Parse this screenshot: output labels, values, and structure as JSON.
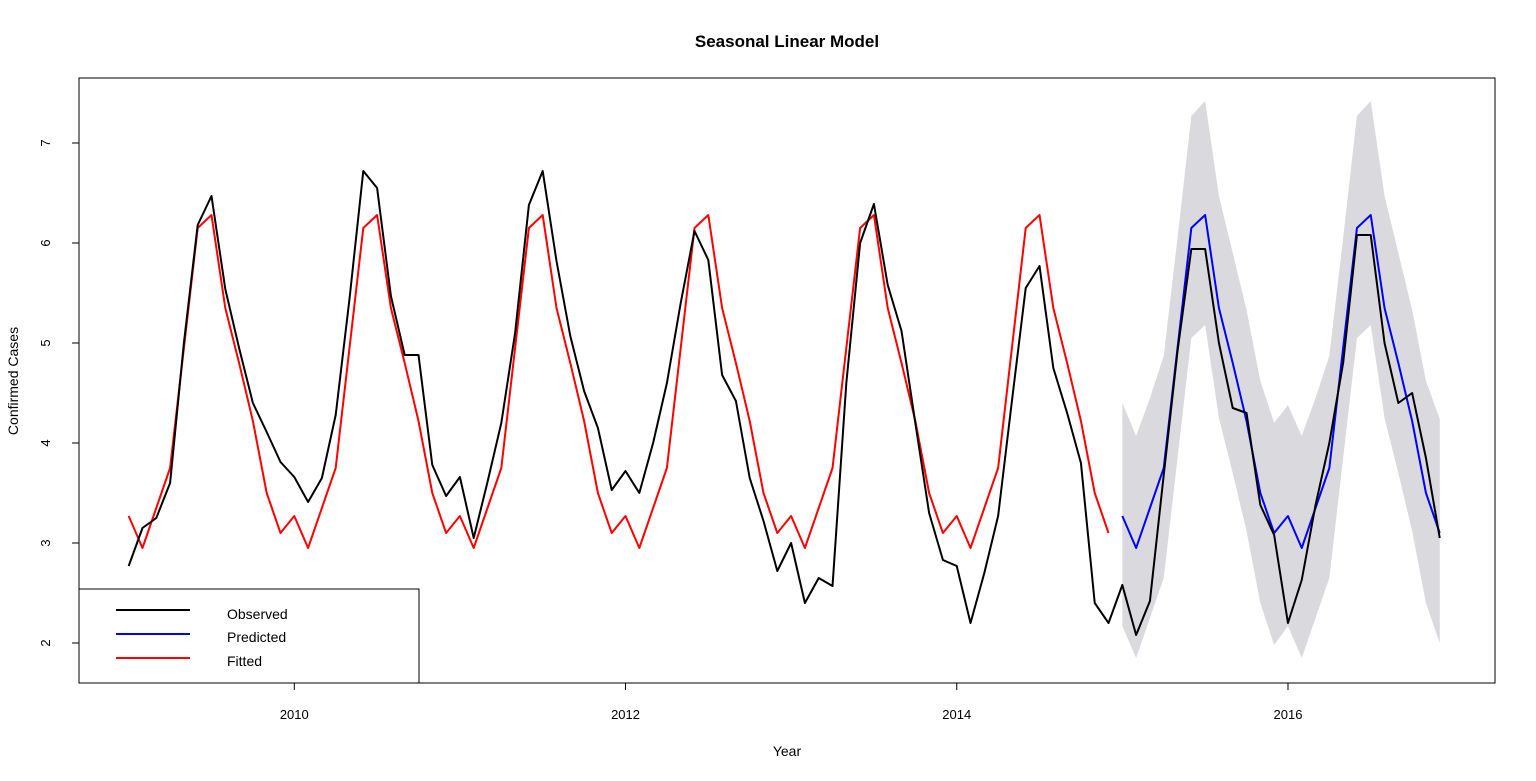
{
  "chart_data": {
    "type": "line",
    "title": "Seasonal Linear Model",
    "xlabel": "Year",
    "ylabel": "Confirmed Cases",
    "xlim": [
      2008.7,
      2017.25
    ],
    "ylim": [
      1.6,
      7.65
    ],
    "x_ticks": [
      2010,
      2012,
      2014,
      2016
    ],
    "x_tick_labels": [
      "2010",
      "2012",
      "2014",
      "2016"
    ],
    "y_ticks": [
      2,
      3,
      4,
      5,
      6,
      7
    ],
    "y_tick_labels": [
      "2",
      "3",
      "4",
      "5",
      "6",
      "7"
    ],
    "grid": false,
    "legend_position": "bottom-left",
    "colors": {
      "observed": "#000000",
      "predicted": "#0000ff",
      "fitted": "#ff0000",
      "interval": "#d9d9de"
    },
    "start": 2009.0,
    "step": 0.08333,
    "series": [
      {
        "name": "Observed",
        "color": "#000000",
        "values": [
          2.77,
          3.15,
          3.25,
          3.6,
          5.0,
          6.18,
          6.47,
          5.54,
          4.95,
          4.4,
          4.11,
          3.81,
          3.66,
          3.41,
          3.65,
          4.28,
          5.44,
          6.72,
          6.55,
          5.47,
          4.88,
          4.88,
          3.78,
          3.47,
          3.66,
          3.05,
          3.61,
          4.2,
          5.1,
          6.38,
          6.72,
          5.82,
          5.07,
          4.52,
          4.15,
          3.53,
          3.72,
          3.5,
          4.0,
          4.6,
          5.4,
          6.12,
          5.83,
          4.68,
          4.42,
          3.65,
          3.22,
          2.72,
          3.0,
          2.4,
          2.65,
          2.57,
          4.6,
          6.0,
          6.39,
          5.58,
          5.12,
          4.2,
          3.3,
          2.83,
          2.77,
          2.2,
          2.7,
          3.27,
          4.42,
          5.55,
          5.77,
          4.75,
          4.3,
          3.8,
          2.4,
          2.2,
          2.58,
          2.08,
          2.42,
          3.68,
          4.92,
          5.94,
          5.94,
          5.0,
          4.35,
          4.3,
          3.38,
          3.08,
          2.2,
          2.63,
          3.38,
          4.0,
          4.8,
          6.08,
          6.08,
          5.0,
          4.4,
          4.5,
          3.85,
          3.05
        ]
      },
      {
        "name": "Fitted",
        "color": "#ff0000",
        "values": [
          3.27,
          2.95,
          3.35,
          3.75,
          4.95,
          6.15,
          6.28,
          5.35,
          4.8,
          4.22,
          3.5,
          3.1,
          3.27,
          2.95,
          3.35,
          3.75,
          4.95,
          6.15,
          6.28,
          5.35,
          4.8,
          4.22,
          3.5,
          3.1,
          3.27,
          2.95,
          3.35,
          3.75,
          4.95,
          6.15,
          6.28,
          5.35,
          4.8,
          4.22,
          3.5,
          3.1,
          3.27,
          2.95,
          3.35,
          3.75,
          4.95,
          6.15,
          6.28,
          5.35,
          4.8,
          4.22,
          3.5,
          3.1,
          3.27,
          2.95,
          3.35,
          3.75,
          4.95,
          6.15,
          6.28,
          5.35,
          4.8,
          4.22,
          3.5,
          3.1,
          3.27,
          2.95,
          3.35,
          3.75,
          4.95,
          6.15,
          6.28,
          5.35,
          4.8,
          4.22,
          3.5,
          3.1
        ]
      },
      {
        "name": "Predicted",
        "color": "#0000ff",
        "start_index": 72,
        "values": [
          3.27,
          2.95,
          3.35,
          3.75,
          4.95,
          6.15,
          6.28,
          5.35,
          4.8,
          4.22,
          3.5,
          3.1,
          3.27,
          2.95,
          3.35,
          3.75,
          4.95,
          6.15,
          6.28,
          5.35,
          4.8,
          4.22,
          3.5,
          3.1
        ]
      }
    ],
    "interval": {
      "start_index": 72,
      "upper": [
        4.4,
        4.07,
        4.45,
        4.87,
        6.05,
        7.27,
        7.42,
        6.47,
        5.9,
        5.33,
        4.62,
        4.2,
        4.38,
        4.07,
        4.45,
        4.87,
        6.05,
        7.27,
        7.42,
        6.47,
        5.9,
        5.33,
        4.62,
        4.24
      ],
      "lower": [
        2.17,
        1.85,
        2.25,
        2.65,
        3.85,
        5.05,
        5.18,
        4.25,
        3.7,
        3.12,
        2.4,
        1.98,
        2.17,
        1.85,
        2.25,
        2.65,
        3.85,
        5.05,
        5.18,
        4.25,
        3.7,
        3.12,
        2.4,
        2.0
      ]
    },
    "legend": [
      {
        "label": "Observed",
        "color": "#000000"
      },
      {
        "label": "Predicted",
        "color": "#0000ff"
      },
      {
        "label": "Fitted",
        "color": "#ff0000"
      }
    ]
  }
}
